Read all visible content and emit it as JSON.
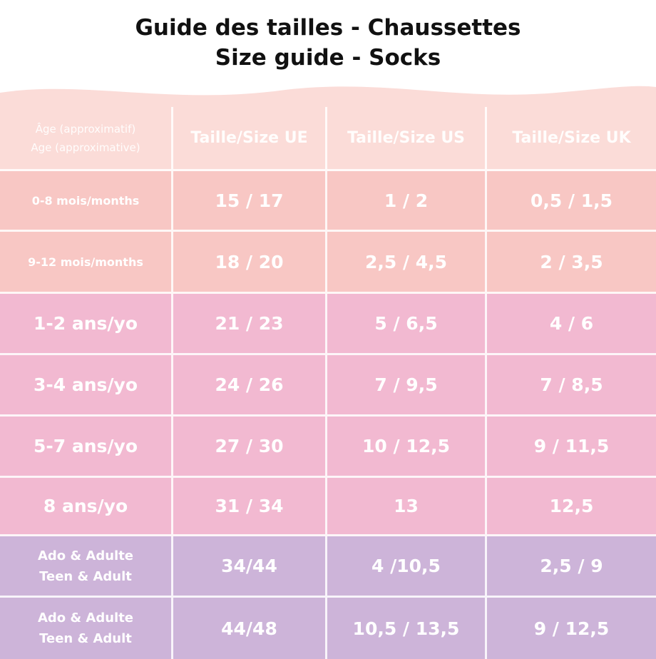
{
  "title": {
    "line1": "Guide des tailles - Chaussettes",
    "line2": "Size guide - Socks"
  },
  "colors": {
    "header_row": "#fbdcd8",
    "infant_rows": "#f8c7c4",
    "child_rows": "#f2b9d1",
    "teen_rows": "#cdb4d9",
    "text": "#ffffff",
    "title_text": "#111111"
  },
  "table": {
    "headers": {
      "age_line1": "Âge (approximatif)",
      "age_line2": "Age (approximative)",
      "eu": "Taille/Size UE",
      "us": "Taille/Size US",
      "uk": "Taille/Size UK"
    },
    "rows": [
      {
        "age": "0-8 mois/months",
        "eu": "15 / 17",
        "us": "1 / 2",
        "uk": "0,5 / 1,5"
      },
      {
        "age": "9-12 mois/months",
        "eu": "18 / 20",
        "us": "2,5 / 4,5",
        "uk": "2 / 3,5"
      },
      {
        "age": "1-2 ans/yo",
        "eu": "21 / 23",
        "us": "5 / 6,5",
        "uk": "4 / 6"
      },
      {
        "age": "3-4 ans/yo",
        "eu": "24 / 26",
        "us": "7 / 9,5",
        "uk": "7 / 8,5"
      },
      {
        "age": "5-7 ans/yo",
        "eu": "27 / 30",
        "us": "10 / 12,5",
        "uk": "9 / 11,5"
      },
      {
        "age": "8 ans/yo",
        "eu": "31 / 34",
        "us": "13",
        "uk": "12,5"
      },
      {
        "age_line1": "Ado & Adulte",
        "age_line2": "Teen & Adult",
        "eu": "34/44",
        "us": "4 /10,5",
        "uk": "2,5 / 9"
      },
      {
        "age_line1": "Ado & Adulte",
        "age_line2": "Teen & Adult",
        "eu": "44/48",
        "us": "10,5 / 13,5",
        "uk": "9 / 12,5"
      }
    ]
  }
}
